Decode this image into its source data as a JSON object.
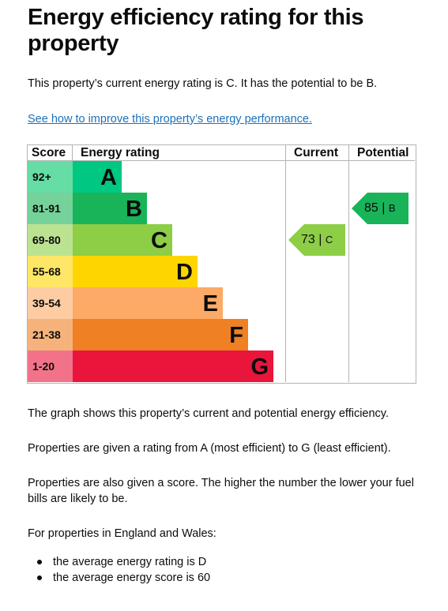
{
  "page": {
    "title": "Energy efficiency rating for this property",
    "current_rating_text": "This property’s current energy rating is C. It has the potential to be B.",
    "improve_link": "See how to improve this property’s energy performance.",
    "graph_text": "The graph shows this property’s current and potential energy efficiency.",
    "rating_range_text": "Properties are given a rating from A (most efficient) to G (least efficient).",
    "score_text": "Properties are also given a score. The higher the number the lower your fuel bills are likely to be.",
    "england_wales_text": "For properties in England and Wales:",
    "bullets": [
      "the average energy rating is D",
      "the average energy score is 60"
    ]
  },
  "chart": {
    "headers": {
      "score": "Score",
      "rating": "Energy rating",
      "current": "Current",
      "potential": "Potential"
    },
    "bands": [
      {
        "score": "92+",
        "letter": "A",
        "color": "#00c781",
        "score_bg": "#66dda5"
      },
      {
        "score": "81-91",
        "letter": "B",
        "color": "#19b459",
        "score_bg": "#75d29b"
      },
      {
        "score": "69-80",
        "letter": "C",
        "color": "#8dce46",
        "score_bg": "#bbe290"
      },
      {
        "score": "55-68",
        "letter": "D",
        "color": "#ffd500",
        "score_bg": "#ffe666"
      },
      {
        "score": "39-54",
        "letter": "E",
        "color": "#fcaa65",
        "score_bg": "#fdcca3"
      },
      {
        "score": "21-38",
        "letter": "F",
        "color": "#ef8023",
        "score_bg": "#f5b37b"
      },
      {
        "score": "1-20",
        "letter": "G",
        "color": "#e9153b",
        "score_bg": "#f27389"
      }
    ],
    "current": {
      "score": "73",
      "letter": "C",
      "band_index": 2,
      "color": "#8dce46"
    },
    "potential": {
      "score": "85",
      "letter": "B",
      "band_index": 1,
      "color": "#19b459"
    }
  }
}
